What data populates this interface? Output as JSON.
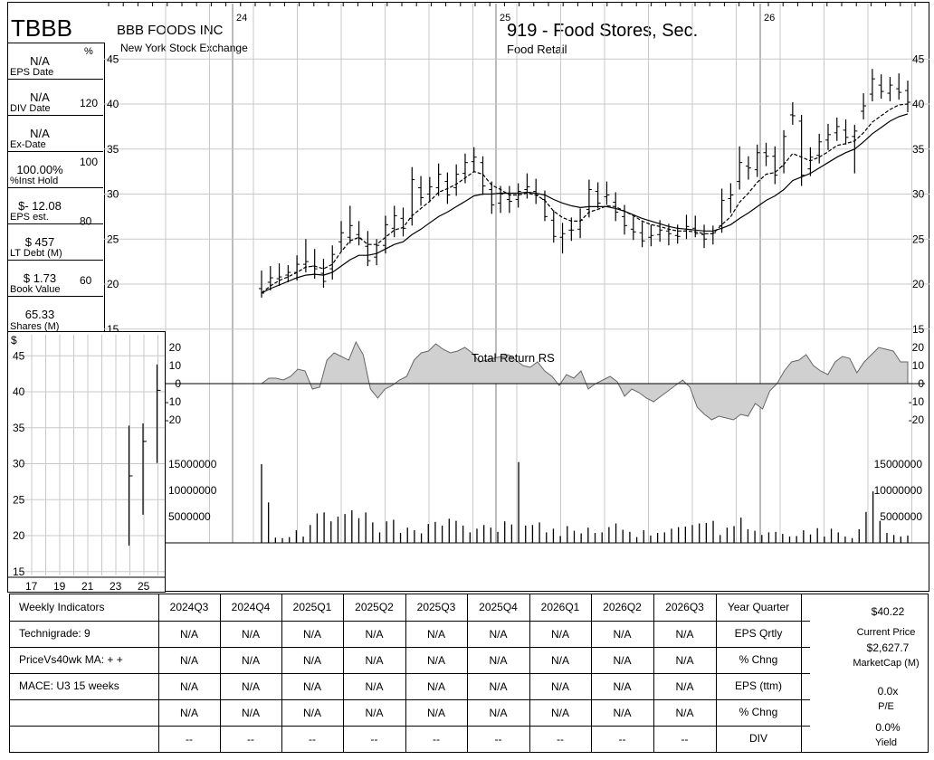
{
  "header": {
    "ticker": "TBBB",
    "company": "BBB FOODS INC",
    "exchange": "New York Stock Exchange",
    "group": "919 - Food Stores, Sec.",
    "sector": "Food Retail",
    "pct_symbol": "%"
  },
  "stats": [
    {
      "value": "N/A",
      "label": "EPS Date"
    },
    {
      "value": "N/A",
      "label": "DIV Date"
    },
    {
      "value": "N/A",
      "label": "Ex-Date"
    },
    {
      "value": "100.00%",
      "label": "%Inst Hold"
    },
    {
      "value": "$- 12.08",
      "label": "EPS est."
    },
    {
      "value": "$ 457",
      "label": "LT Debt (M)"
    },
    {
      "value": "$ 1.73",
      "label": "Book Value"
    },
    {
      "value": "65.33",
      "label": "Shares (M)"
    }
  ],
  "chart_data": [
    {
      "type": "line",
      "name": "weekly-price",
      "x_labels": [
        "24",
        "25",
        "26"
      ],
      "ylim": [
        15,
        45
      ],
      "y_ticks": [
        15,
        20,
        25,
        30,
        35,
        40,
        45
      ],
      "pct_ticks": [
        60,
        80,
        100,
        120
      ],
      "weeks": 74,
      "bars": [
        [
          19.5,
          21.5,
          18.5,
          19.0
        ],
        [
          20.2,
          22.0,
          19.3,
          20.7
        ],
        [
          20.6,
          22.3,
          19.8,
          20.8
        ],
        [
          21.0,
          22.1,
          20.2,
          21.3
        ],
        [
          21.3,
          23.2,
          20.4,
          22.2
        ],
        [
          22.2,
          25.0,
          21.3,
          22.5
        ],
        [
          22.0,
          23.9,
          20.6,
          21.7
        ],
        [
          21.2,
          22.8,
          19.6,
          20.3
        ],
        [
          21.7,
          24.3,
          20.5,
          23.3
        ],
        [
          24.7,
          27.0,
          23.6,
          25.7
        ],
        [
          25.2,
          28.7,
          24.5,
          26.5
        ],
        [
          25.5,
          27.0,
          24.3,
          25.1
        ],
        [
          24.2,
          25.9,
          22.0,
          22.6
        ],
        [
          23.0,
          25.0,
          22.1,
          24.3
        ],
        [
          24.3,
          27.6,
          23.4,
          26.6
        ],
        [
          26.2,
          28.7,
          25.2,
          27.6
        ],
        [
          27.3,
          28.5,
          25.3,
          26.2
        ],
        [
          27.3,
          33.0,
          26.5,
          31.6
        ],
        [
          30.7,
          32.0,
          28.7,
          29.6
        ],
        [
          30.0,
          31.9,
          29.1,
          30.8
        ],
        [
          30.7,
          33.4,
          29.8,
          32.2
        ],
        [
          31.4,
          32.4,
          28.9,
          29.9
        ],
        [
          30.7,
          33.3,
          29.8,
          32.2
        ],
        [
          32.3,
          34.5,
          31.2,
          33.5
        ],
        [
          33.6,
          35.2,
          32.4,
          34.1
        ],
        [
          33.5,
          34.2,
          29.9,
          30.9
        ],
        [
          30.5,
          31.4,
          27.8,
          28.8
        ],
        [
          29.0,
          30.9,
          27.9,
          30.0
        ],
        [
          29.4,
          30.9,
          27.9,
          29.2
        ],
        [
          29.4,
          31.2,
          28.5,
          30.3
        ],
        [
          30.5,
          32.3,
          29.5,
          30.8
        ],
        [
          30.3,
          31.7,
          28.9,
          29.9
        ],
        [
          29.4,
          30.4,
          27.0,
          27.5
        ],
        [
          27.1,
          28.2,
          24.6,
          25.3
        ],
        [
          25.2,
          26.8,
          23.4,
          25.6
        ],
        [
          26.0,
          27.4,
          24.8,
          26.0
        ],
        [
          26.1,
          28.4,
          25.1,
          27.1
        ],
        [
          28.3,
          31.6,
          27.4,
          30.5
        ],
        [
          30.3,
          31.3,
          28.4,
          29.0
        ],
        [
          29.7,
          31.4,
          28.8,
          29.9
        ],
        [
          29.1,
          30.2,
          27.0,
          28.0
        ],
        [
          27.5,
          28.8,
          25.5,
          26.5
        ],
        [
          26.1,
          27.5,
          24.9,
          25.8
        ],
        [
          25.7,
          26.9,
          24.1,
          24.8
        ],
        [
          25.2,
          26.6,
          24.2,
          25.4
        ],
        [
          25.5,
          27.1,
          24.7,
          26.0
        ],
        [
          25.9,
          26.7,
          24.3,
          25.6
        ],
        [
          25.4,
          26.6,
          24.5,
          25.3
        ],
        [
          25.9,
          27.7,
          25.0,
          26.4
        ],
        [
          26.2,
          27.6,
          25.2,
          25.6
        ],
        [
          25.5,
          26.6,
          24.0,
          25.0
        ],
        [
          25.6,
          26.5,
          24.4,
          25.7
        ],
        [
          26.5,
          30.6,
          25.7,
          29.3
        ],
        [
          29.5,
          31.2,
          27.9,
          29.9
        ],
        [
          31.4,
          35.3,
          30.5,
          33.5
        ],
        [
          33.1,
          34.2,
          31.6,
          32.9
        ],
        [
          32.7,
          35.5,
          31.9,
          34.6
        ],
        [
          34.6,
          35.7,
          33.1,
          34.2
        ],
        [
          34.2,
          35.3,
          31.1,
          32.1
        ],
        [
          33.1,
          37.1,
          32.3,
          36.4
        ],
        [
          38.8,
          40.2,
          37.7,
          38.7
        ],
        [
          38.1,
          38.8,
          30.9,
          32.1
        ],
        [
          32.8,
          35.2,
          32.0,
          34.1
        ],
        [
          34.3,
          36.7,
          33.4,
          35.8
        ],
        [
          36.0,
          37.8,
          34.9,
          36.6
        ],
        [
          36.8,
          38.5,
          35.9,
          37.5
        ],
        [
          37.1,
          38.3,
          35.5,
          36.3
        ],
        [
          36.4,
          37.7,
          32.3,
          37.0
        ],
        [
          39.2,
          41.2,
          38.3,
          39.8
        ],
        [
          41.1,
          43.9,
          40.3,
          42.8
        ],
        [
          42.1,
          43.3,
          40.6,
          41.4
        ],
        [
          41.2,
          43.0,
          40.3,
          42.1
        ],
        [
          41.7,
          43.4,
          40.5,
          41.3
        ],
        [
          41.5,
          42.6,
          39.1,
          40.2
        ]
      ],
      "ma10": [
        19.0,
        19.8,
        20.4,
        20.8,
        21.3,
        21.9,
        22.0,
        21.7,
        22.2,
        23.6,
        24.8,
        25.2,
        24.4,
        24.4,
        25.2,
        26.0,
        26.3,
        27.6,
        28.4,
        29.2,
        30.2,
        30.6,
        31.1,
        31.8,
        32.5,
        32.2,
        31.0,
        30.5,
        29.9,
        29.9,
        30.1,
        29.9,
        29.3,
        28.1,
        27.4,
        27.0,
        27.0,
        28.0,
        28.3,
        28.7,
        28.6,
        28.1,
        27.6,
        27.0,
        26.6,
        26.4,
        26.1,
        25.9,
        25.9,
        25.8,
        25.6,
        25.6,
        26.6,
        27.5,
        29.1,
        30.1,
        31.3,
        32.2,
        32.4,
        33.3,
        34.5,
        34.1,
        33.7,
        34.1,
        34.7,
        35.4,
        35.6,
        35.9,
        36.8,
        38.0,
        38.7,
        39.4,
        39.9,
        40.0
      ],
      "ma40": [
        19.0,
        19.5,
        19.9,
        20.3,
        20.7,
        21.0,
        21.1,
        21.0,
        21.3,
        22.0,
        22.7,
        23.2,
        23.2,
        23.4,
        23.9,
        24.4,
        24.7,
        25.5,
        26.1,
        26.8,
        27.5,
        28.0,
        28.6,
        29.2,
        29.8,
        30.0,
        30.0,
        30.1,
        30.1,
        30.1,
        30.2,
        30.1,
        29.9,
        29.4,
        29.0,
        28.7,
        28.5,
        28.6,
        28.6,
        28.6,
        28.4,
        28.1,
        27.7,
        27.3,
        27.0,
        26.7,
        26.4,
        26.2,
        26.1,
        26.0,
        25.9,
        25.9,
        26.2,
        26.6,
        27.3,
        27.9,
        28.6,
        29.3,
        29.8,
        30.5,
        31.5,
        31.9,
        32.3,
        32.9,
        33.5,
        34.1,
        34.6,
        35.0,
        35.8,
        36.7,
        37.4,
        38.1,
        38.6,
        38.9
      ]
    },
    {
      "type": "area",
      "name": "relative-strength",
      "title": "Total Return RS",
      "ylim": [
        -25,
        25
      ],
      "y_ticks": [
        20,
        10,
        0,
        -10,
        -20
      ],
      "values": [
        0,
        3,
        3,
        2,
        4,
        8,
        7,
        -3,
        -2,
        13,
        17,
        15,
        13,
        23,
        16,
        -3,
        -8,
        -3,
        -1,
        2,
        4,
        13,
        17,
        18,
        22,
        19,
        17,
        18,
        20,
        17,
        12,
        13,
        14,
        15,
        16,
        13,
        10,
        9,
        12,
        7,
        4,
        -1,
        5,
        3,
        7,
        -3,
        0,
        2,
        4,
        1,
        -7,
        -3,
        -5,
        -8,
        -10,
        -7,
        -4,
        -1,
        2,
        -2,
        -13,
        -17,
        -20,
        -18,
        -19,
        -20,
        -17,
        -18,
        -11,
        -14,
        -4,
        0,
        7,
        12,
        13,
        16,
        10,
        7,
        5,
        12,
        15,
        14,
        6,
        12,
        16,
        20,
        19,
        18,
        12,
        12
      ]
    },
    {
      "type": "bar",
      "name": "volume",
      "y_ticks": [
        15000000,
        10000000,
        5000000
      ],
      "values": [
        15000000,
        7700000,
        1000000,
        900000,
        1100000,
        2400000,
        1200000,
        3400000,
        5600000,
        5800000,
        4100000,
        5000000,
        5500000,
        6200000,
        4700000,
        5800000,
        3900000,
        2000000,
        4100000,
        4400000,
        1900000,
        2900000,
        2400000,
        1800000,
        3600000,
        4000000,
        3300000,
        4600000,
        4200000,
        3300000,
        2000000,
        2700000,
        3400000,
        2900000,
        2100000,
        4100000,
        3500000,
        15400000,
        3300000,
        3400000,
        3900000,
        2000000,
        2700000,
        1300000,
        3200000,
        2300000,
        1800000,
        2900000,
        1900000,
        2000000,
        3000000,
        3700000,
        2500000,
        2100000,
        1100000,
        2400000,
        1400000,
        1900000,
        2000000,
        2700000,
        3000000,
        3100000,
        3400000,
        3700000,
        3800000,
        4200000,
        1500000,
        2900000,
        3200000,
        4800000,
        2600000,
        2300000,
        1500000,
        2000000,
        2100000,
        1700000,
        1200000,
        1300000,
        2400000,
        1600000,
        2800000,
        1200000,
        2700000,
        2000000,
        1200000,
        900000,
        2600000,
        5900000,
        9800000,
        4200000,
        1900000,
        1500000,
        1200000,
        1400000
      ]
    },
    {
      "type": "line",
      "name": "annual-range",
      "ylabel": "$",
      "x_labels": [
        "17",
        "19",
        "21",
        "23",
        "25"
      ],
      "y_ticks": [
        15,
        20,
        25,
        30,
        35,
        40,
        45
      ],
      "ylim": [
        14,
        48
      ],
      "bars": [
        {
          "x": 24,
          "high": 35.3,
          "low": 18.6,
          "close": 28.3
        },
        {
          "x": 25,
          "high": 35.6,
          "low": 22.9,
          "close": 33.1
        },
        {
          "x": 26,
          "high": 43.8,
          "low": 30.1,
          "close": 40.2
        }
      ]
    }
  ],
  "table": {
    "row_labels": [
      "Weekly Indicators",
      "Technigrade: 9",
      "PriceVs40wk MA:  + +",
      "MACE: U3  15 weeks",
      "",
      ""
    ],
    "quarters": [
      "2024Q3",
      "2024Q4",
      "2025Q1",
      "2025Q2",
      "2025Q3",
      "2025Q4",
      "2026Q1",
      "2026Q2",
      "2026Q3"
    ],
    "metric_labels": [
      "Year Quarter",
      "EPS Qrtly",
      "% Chng",
      "EPS (ttm)",
      "% Chng",
      "DIV"
    ],
    "rows": [
      [
        "N/A",
        "N/A",
        "N/A",
        "N/A",
        "N/A",
        "N/A",
        "N/A",
        "N/A",
        "N/A"
      ],
      [
        "N/A",
        "N/A",
        "N/A",
        "N/A",
        "N/A",
        "N/A",
        "N/A",
        "N/A",
        "N/A"
      ],
      [
        "N/A",
        "N/A",
        "N/A",
        "N/A",
        "N/A",
        "N/A",
        "N/A",
        "N/A",
        "N/A"
      ],
      [
        "N/A",
        "N/A",
        "N/A",
        "N/A",
        "N/A",
        "N/A",
        "N/A",
        "N/A",
        "N/A"
      ],
      [
        "--",
        "--",
        "--",
        "--",
        "--",
        "--",
        "--",
        "--",
        "--"
      ]
    ],
    "summary": [
      {
        "value": "$40.22",
        "label": "Current Price"
      },
      {
        "value": "$2,627.7",
        "label": "MarketCap (M)"
      },
      {
        "value": "0.0x",
        "label": "P/E"
      },
      {
        "value": "0.0%",
        "label": "Yield"
      }
    ]
  }
}
